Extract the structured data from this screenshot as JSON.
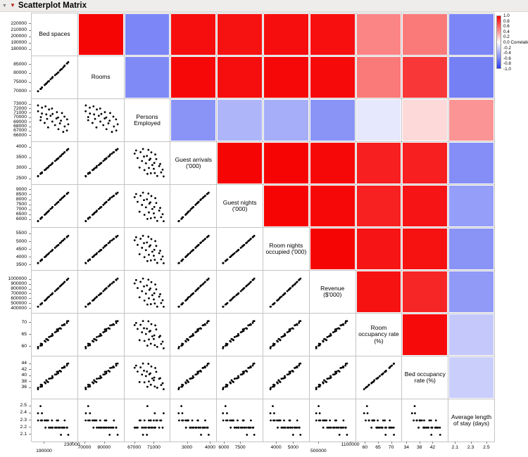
{
  "title": "Scatterplot Matrix",
  "icons": {
    "disclosure_glyph": "▼",
    "red_triangle_glyph": "▼"
  },
  "legend": {
    "ticks": [
      "1.0",
      "0.8",
      "0.6",
      "0.4",
      "0.2",
      "0.0",
      "-0.2",
      "-0.4",
      "-0.6",
      "-0.8",
      "-1.0"
    ],
    "label": "Correlation",
    "label_at_index": 5,
    "color_positive": "#f60000",
    "color_negative": "#2b3cf0",
    "color_zero": "#ffffff"
  },
  "chart_data": {
    "type": "scatterplot_matrix",
    "title": "Scatterplot Matrix",
    "point_color": "#000000",
    "grid_line_color": "#c4c4c4",
    "variables": [
      {
        "key": "bed_spaces",
        "label": "Bed spaces",
        "min": 176000,
        "max": 232000,
        "decimals": 0,
        "yticks": [
          220000,
          210000,
          200000,
          190000,
          180000
        ],
        "xticks": [
          190000,
          230000
        ],
        "stagger": true
      },
      {
        "key": "rooms",
        "label": "Rooms",
        "min": 68000,
        "max": 88000,
        "decimals": 0,
        "yticks": [
          85000,
          80000,
          75000,
          70000
        ],
        "xticks": [
          70000,
          80000
        ],
        "stagger": false
      },
      {
        "key": "persons_employed",
        "label": "Persons Employed",
        "min": 65500,
        "max": 73500,
        "decimals": 0,
        "yticks": [
          73000,
          72000,
          71000,
          70000,
          69000,
          68000,
          67000,
          66000
        ],
        "xticks": [
          67000,
          71000
        ],
        "stagger": false
      },
      {
        "key": "guest_arrivals",
        "label": "Guest arrivals ('000)",
        "min": 2400,
        "max": 4100,
        "decimals": 0,
        "yticks": [
          4000,
          3500,
          3000,
          2500
        ],
        "xticks": [
          3000,
          4000
        ],
        "stagger": false
      },
      {
        "key": "guest_nights",
        "label": "Guest nights ('000)",
        "min": 5600,
        "max": 9200,
        "decimals": 0,
        "yticks": [
          9000,
          8500,
          8000,
          7500,
          7000,
          6500,
          6000
        ],
        "xticks": [
          6000,
          7500
        ],
        "stagger": false
      },
      {
        "key": "room_nights",
        "label": "Room nights occupied ('000)",
        "min": 3400,
        "max": 5700,
        "decimals": 0,
        "yticks": [
          5500,
          5000,
          4500,
          4000,
          3500
        ],
        "xticks": [
          4000,
          5000
        ],
        "stagger": false
      },
      {
        "key": "revenue",
        "label": "Revenue ($'000)",
        "min": 380000,
        "max": 1120000,
        "decimals": 0,
        "yticks": [
          1000000,
          900000,
          800000,
          700000,
          600000,
          500000,
          400000
        ],
        "xticks": [
          500000,
          1100000
        ],
        "stagger": true
      },
      {
        "key": "room_occupancy",
        "label": "Room occupancy rate (%)",
        "min": 57.5,
        "max": 72.5,
        "decimals": 0,
        "yticks": [
          70,
          65,
          60
        ],
        "xticks": [
          60,
          65,
          70
        ],
        "stagger": false
      },
      {
        "key": "bed_occupancy",
        "label": "Bed occupancy rate (%)",
        "min": 33.5,
        "max": 45.5,
        "decimals": 0,
        "yticks": [
          44,
          42,
          40,
          38,
          36
        ],
        "xticks": [
          34,
          38,
          42
        ],
        "stagger": false
      },
      {
        "key": "avg_stay",
        "label": "Average length of stay (days)",
        "min": 2.05,
        "max": 2.55,
        "decimals": 1,
        "yticks": [
          2.5,
          2.4,
          2.3,
          2.2,
          2.1
        ],
        "xticks": [
          2.1,
          2.3,
          2.5
        ],
        "stagger": false
      }
    ],
    "observations": {
      "bed_spaces": [
        180600,
        180500,
        184600,
        184100,
        186200,
        186100,
        190000,
        192300,
        191200,
        193500,
        196200,
        194900,
        198400,
        200900,
        200400,
        201300,
        204800,
        207500,
        206800,
        209600,
        209100,
        211800,
        214700,
        213200,
        216500,
        218200,
        218500,
        222000,
        221700,
        223600
      ],
      "rooms": [
        70200,
        70300,
        71500,
        71500,
        72300,
        72400,
        73700,
        74500,
        74200,
        75000,
        75900,
        75700,
        76900,
        77700,
        77600,
        78200,
        79200,
        80000,
        79900,
        80800,
        80700,
        81800,
        82700,
        82400,
        83600,
        84300,
        84600,
        85700,
        85800,
        86500
      ],
      "persons_employed": [
        71500,
        72800,
        70200,
        69500,
        72300,
        71000,
        68900,
        70800,
        72600,
        69800,
        71900,
        67900,
        70500,
        69200,
        72100,
        70900,
        68400,
        71300,
        69900,
        67500,
        70100,
        68800,
        71100,
        69400,
        66900,
        70300,
        68100,
        69700,
        67200,
        68600
      ],
      "guest_arrivals": [
        2640,
        2620,
        2770,
        2740,
        2810,
        2780,
        2920,
        2980,
        2940,
        3020,
        3110,
        3040,
        3160,
        3240,
        3210,
        3260,
        3350,
        3440,
        3400,
        3490,
        3460,
        3560,
        3660,
        3590,
        3700,
        3760,
        3770,
        3880,
        3850,
        3920
      ],
      "guest_nights": [
        5900,
        5870,
        6170,
        6100,
        6280,
        6240,
        6520,
        6660,
        6580,
        6760,
        6940,
        6830,
        7100,
        7270,
        7210,
        7300,
        7510,
        7700,
        7640,
        7820,
        7770,
        7990,
        8190,
        8070,
        8290,
        8400,
        8430,
        8650,
        8600,
        8740
      ],
      "room_nights": [
        3650,
        3630,
        3810,
        3770,
        3880,
        3850,
        4020,
        4110,
        4060,
        4170,
        4280,
        4210,
        4370,
        4470,
        4430,
        4490,
        4620,
        4740,
        4700,
        4810,
        4780,
        4920,
        5050,
        4960,
        5100,
        5180,
        5200,
        5330,
        5300,
        5390
      ],
      "revenue": [
        443000,
        442000,
        495000,
        487000,
        518000,
        508000,
        568000,
        592000,
        575000,
        615000,
        650000,
        635000,
        680000,
        712000,
        700000,
        720000,
        762000,
        800000,
        790000,
        828000,
        818000,
        860000,
        900000,
        880000,
        922000,
        950000,
        955000,
        1000000,
        992000,
        1022000
      ],
      "room_occupancy": [
        59.9,
        59.3,
        61.2,
        60.4,
        61.1,
        60.6,
        62.4,
        63.2,
        62.1,
        63.0,
        64.0,
        62.7,
        64.3,
        65.3,
        64.5,
        64.7,
        66.0,
        67.2,
        66.3,
        67.4,
        66.6,
        67.7,
        68.9,
        67.5,
        69.0,
        69.4,
        69.1,
        70.6,
        69.9,
        70.7
      ],
      "bed_occupancy": [
        36.1,
        35.6,
        37.1,
        36.4,
        37.0,
        36.5,
        37.9,
        38.6,
        37.6,
        38.2,
        39.1,
        38.0,
        39.2,
        40.0,
        39.3,
        39.5,
        40.5,
        41.4,
        40.6,
        41.5,
        40.9,
        41.8,
        42.7,
        41.5,
        42.8,
        43.2,
        42.9,
        44.1,
        43.5,
        44.2
      ],
      "avg_stay": [
        2.3,
        2.4,
        2.3,
        2.5,
        2.3,
        2.4,
        2.3,
        2.3,
        2.2,
        2.3,
        2.2,
        2.3,
        2.2,
        2.2,
        2.3,
        2.2,
        2.2,
        2.3,
        2.2,
        2.2,
        2.3,
        2.2,
        2.2,
        2.1,
        2.2,
        2.2,
        2.3,
        2.2,
        2.2,
        2.1
      ]
    },
    "correlations": [
      [
        1.0,
        0.98,
        -0.62,
        0.95,
        0.93,
        0.95,
        0.94,
        0.48,
        0.52,
        -0.62
      ],
      [
        0.98,
        1.0,
        -0.6,
        0.97,
        0.95,
        0.97,
        0.96,
        0.52,
        0.78,
        -0.65
      ],
      [
        -0.62,
        -0.6,
        1.0,
        -0.55,
        -0.38,
        -0.42,
        -0.55,
        -0.12,
        0.15,
        0.42
      ],
      [
        0.95,
        0.97,
        -0.55,
        1.0,
        0.98,
        0.99,
        0.97,
        0.88,
        0.88,
        -0.58
      ],
      [
        0.93,
        0.95,
        -0.38,
        0.98,
        1.0,
        0.99,
        0.97,
        0.87,
        0.92,
        -0.5
      ],
      [
        0.95,
        0.97,
        -0.42,
        0.99,
        0.99,
        1.0,
        0.98,
        0.92,
        0.93,
        -0.55
      ],
      [
        0.94,
        0.96,
        -0.55,
        0.97,
        0.97,
        0.98,
        1.0,
        0.93,
        0.85,
        -0.52
      ],
      [
        0.48,
        0.52,
        -0.12,
        0.88,
        0.87,
        0.92,
        0.93,
        1.0,
        0.96,
        -0.28
      ],
      [
        0.52,
        0.78,
        0.15,
        0.88,
        0.92,
        0.93,
        0.85,
        0.96,
        1.0,
        -0.25
      ],
      [
        -0.62,
        -0.65,
        0.42,
        -0.58,
        -0.5,
        -0.55,
        -0.52,
        -0.28,
        -0.25,
        1.0
      ]
    ]
  }
}
